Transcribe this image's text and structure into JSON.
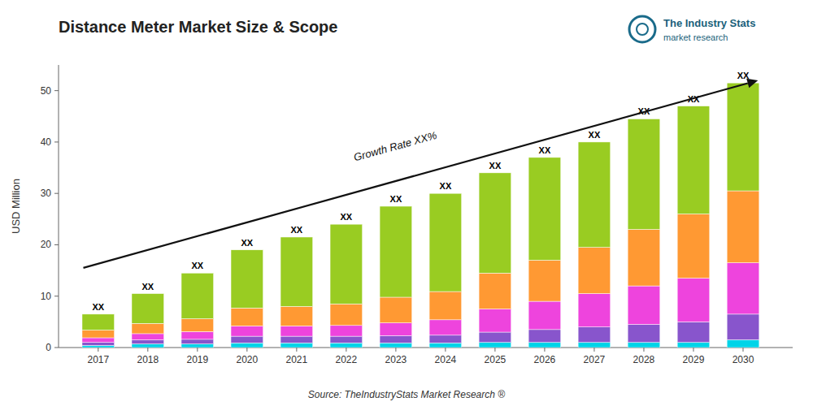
{
  "chart_data": {
    "type": "bar",
    "stacked": true,
    "title": "Distance Meter Market Size & Scope",
    "y_label": "USD Million",
    "x": [
      2017,
      2018,
      2019,
      2020,
      2021,
      2022,
      2023,
      2024,
      2025,
      2026,
      2027,
      2028,
      2029,
      2030
    ],
    "xlim": [
      2016.2,
      2031.0
    ],
    "xticks": [
      2017,
      2018,
      2019,
      2020,
      2021,
      2022,
      2023,
      2024,
      2025,
      2026,
      2027,
      2028,
      2029,
      2030
    ],
    "ylim": [
      0,
      55
    ],
    "yticks": [
      0,
      10,
      20,
      30,
      40,
      50
    ],
    "grid": false,
    "series": [
      {
        "color": "#00d4e8",
        "values": [
          0.4,
          0.7,
          0.7,
          0.9,
          0.9,
          0.9,
          0.9,
          0.9,
          1.0,
          1.0,
          1.0,
          1.0,
          1.0,
          1.5
        ]
      },
      {
        "color": "#8855cc",
        "values": [
          0.6,
          0.8,
          0.9,
          1.3,
          1.3,
          1.3,
          1.4,
          1.5,
          2.0,
          2.5,
          3.0,
          3.5,
          4.0,
          5.0
        ]
      },
      {
        "color": "#ee44dd",
        "values": [
          0.9,
          1.2,
          1.5,
          2.0,
          2.0,
          2.1,
          2.5,
          3.0,
          4.5,
          5.5,
          6.5,
          7.5,
          8.5,
          10.0
        ]
      },
      {
        "color": "#ff9933",
        "values": [
          1.5,
          2.0,
          2.5,
          3.5,
          3.8,
          4.2,
          5.0,
          5.5,
          7.0,
          8.0,
          9.0,
          11.0,
          12.5,
          14.0
        ]
      },
      {
        "color": "#99cc22",
        "values": [
          3.1,
          5.8,
          8.9,
          11.3,
          13.5,
          15.5,
          17.7,
          19.1,
          19.5,
          20.0,
          20.5,
          21.5,
          21.0,
          21.0
        ]
      }
    ],
    "annotations": [
      {
        "text": "XX",
        "x": 2017,
        "y": 6.5
      },
      {
        "text": "XX",
        "x": 2018,
        "y": 10.5
      },
      {
        "text": "XX",
        "x": 2019,
        "y": 14.5
      },
      {
        "text": "XX",
        "x": 2020,
        "y": 19.0
      },
      {
        "text": "XX",
        "x": 2021,
        "y": 21.5
      },
      {
        "text": "XX",
        "x": 2022,
        "y": 24.0
      },
      {
        "text": "XX",
        "x": 2023,
        "y": 27.5
      },
      {
        "text": "XX",
        "x": 2024,
        "y": 30.0
      },
      {
        "text": "XX",
        "x": 2025,
        "y": 34.0
      },
      {
        "text": "XX",
        "x": 2026,
        "y": 37.0
      },
      {
        "text": "XX",
        "x": 2027,
        "y": 40.0
      },
      {
        "text": "XX",
        "x": 2028,
        "y": 44.5
      },
      {
        "text": "XX",
        "x": 2029,
        "y": 47.0
      },
      {
        "text": "XX",
        "x": 2030,
        "y": 51.5
      },
      {
        "text": "Growth Rate XX%",
        "x": [
          2016.7,
          2030.3
        ],
        "y": [
          15.5,
          52.0
        ]
      },
      {
        "text": "Source: TheIndustryStats Market Research ®",
        "position": "bottom"
      },
      {
        "text": "The Industry Stats",
        "position": "top-right"
      },
      {
        "text": "market research",
        "position": "top-right"
      }
    ]
  }
}
